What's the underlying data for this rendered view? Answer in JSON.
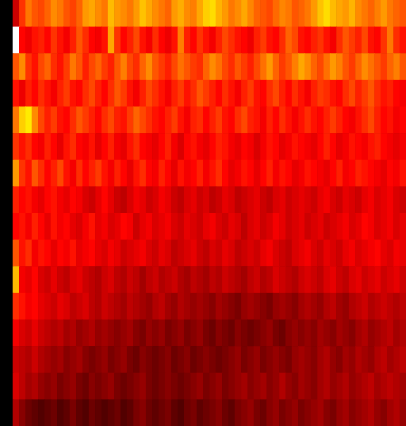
{
  "chart_data": {
    "type": "heatmap",
    "tick_labels": false,
    "zlim": [
      0,
      100
    ],
    "cells": [
      [
        0,
        0,
        30,
        45,
        55,
        50,
        48,
        52,
        58,
        55,
        50,
        47,
        52,
        60,
        62,
        58,
        55,
        65,
        60,
        58,
        55,
        60,
        66,
        62,
        58,
        55,
        52,
        60,
        63,
        58,
        56,
        62,
        68,
        70,
        64,
        60,
        55,
        58,
        62,
        57,
        52,
        50,
        48,
        53,
        57,
        55,
        50,
        52,
        55,
        60,
        66,
        70,
        65,
        62,
        60,
        64,
        58,
        55,
        52,
        56,
        60,
        55,
        52,
        50
      ],
      [
        0,
        0,
        100,
        38,
        35,
        40,
        42,
        38,
        45,
        40,
        36,
        42,
        50,
        44,
        38,
        36,
        40,
        62,
        45,
        38,
        42,
        48,
        40,
        36,
        44,
        38,
        35,
        40,
        56,
        42,
        38,
        45,
        40,
        36,
        42,
        48,
        44,
        40,
        38,
        35,
        42,
        46,
        40,
        38,
        44,
        52,
        48,
        40,
        38,
        42,
        45,
        40,
        36,
        44,
        50,
        46,
        42,
        48,
        40,
        38,
        45,
        55,
        44,
        40
      ],
      [
        0,
        0,
        50,
        58,
        45,
        40,
        48,
        52,
        44,
        40,
        46,
        55,
        50,
        42,
        48,
        52,
        46,
        42,
        50,
        56,
        48,
        44,
        52,
        58,
        50,
        46,
        42,
        48,
        54,
        50,
        46,
        44,
        52,
        58,
        54,
        48,
        44,
        50,
        46,
        42,
        48,
        54,
        60,
        52,
        46,
        50,
        56,
        62,
        58,
        52,
        48,
        54,
        60,
        56,
        50,
        46,
        52,
        58,
        54,
        50,
        46,
        52,
        56,
        50
      ],
      [
        0,
        0,
        40,
        35,
        42,
        38,
        44,
        40,
        36,
        42,
        46,
        40,
        38,
        44,
        48,
        42,
        38,
        44,
        50,
        46,
        40,
        36,
        42,
        48,
        44,
        40,
        36,
        42,
        46,
        40,
        44,
        50,
        46,
        42,
        38,
        44,
        40,
        36,
        42,
        46,
        40,
        38,
        44,
        48,
        42,
        38,
        44,
        40,
        36,
        42,
        46,
        44,
        40,
        38,
        44,
        48,
        42,
        46,
        50,
        44,
        40,
        42,
        38,
        36
      ],
      [
        0,
        0,
        55,
        68,
        72,
        58,
        48,
        42,
        46,
        40,
        38,
        44,
        50,
        46,
        42,
        38,
        44,
        48,
        42,
        40,
        46,
        52,
        48,
        44,
        40,
        38,
        42,
        46,
        40,
        36,
        42,
        44,
        38,
        42,
        46,
        40,
        38,
        44,
        48,
        42,
        40,
        36,
        42,
        38,
        44,
        40,
        36,
        40,
        44,
        40,
        38,
        42,
        46,
        42,
        38,
        36,
        40,
        44,
        48,
        42,
        38,
        40,
        36,
        38
      ],
      [
        0,
        0,
        45,
        40,
        44,
        38,
        36,
        42,
        38,
        34,
        40,
        44,
        38,
        36,
        40,
        34,
        38,
        42,
        36,
        34,
        40,
        44,
        38,
        36,
        34,
        38,
        42,
        36,
        32,
        38,
        40,
        36,
        34,
        38,
        42,
        40,
        36,
        34,
        38,
        36,
        32,
        36,
        40,
        38,
        34,
        36,
        40,
        38,
        36,
        34,
        38,
        42,
        38,
        34,
        36,
        40,
        38,
        36,
        40,
        42,
        38,
        36,
        34,
        36
      ],
      [
        0,
        0,
        60,
        45,
        40,
        50,
        44,
        38,
        42,
        48,
        40,
        36,
        44,
        38,
        42,
        46,
        40,
        36,
        42,
        38,
        34,
        40,
        44,
        38,
        36,
        42,
        38,
        34,
        40,
        36,
        38,
        42,
        36,
        40,
        44,
        38,
        34,
        36,
        40,
        38,
        34,
        38,
        42,
        36,
        40,
        38,
        34,
        36,
        40,
        38,
        36,
        34,
        38,
        42,
        36,
        38,
        42,
        40,
        38,
        36,
        34,
        38,
        36,
        40
      ],
      [
        0,
        0,
        42,
        38,
        40,
        36,
        34,
        38,
        40,
        36,
        34,
        38,
        36,
        32,
        30,
        34,
        38,
        34,
        30,
        28,
        32,
        36,
        34,
        30,
        32,
        36,
        34,
        30,
        28,
        32,
        34,
        30,
        32,
        28,
        30,
        34,
        32,
        28,
        30,
        32,
        34,
        30,
        28,
        32,
        34,
        30,
        32,
        34,
        32,
        30,
        34,
        36,
        32,
        30,
        34,
        32,
        30,
        34,
        36,
        32,
        34,
        36,
        32,
        30
      ],
      [
        0,
        0,
        38,
        40,
        36,
        42,
        38,
        34,
        40,
        36,
        38,
        34,
        32,
        36,
        40,
        34,
        36,
        32,
        34,
        38,
        36,
        30,
        34,
        36,
        32,
        34,
        36,
        32,
        30,
        34,
        32,
        30,
        34,
        36,
        32,
        30,
        34,
        32,
        28,
        32,
        34,
        30,
        32,
        36,
        34,
        30,
        32,
        34,
        30,
        32,
        34,
        30,
        32,
        34,
        36,
        32,
        34,
        38,
        36,
        32,
        34,
        36,
        32,
        34
      ],
      [
        0,
        0,
        50,
        40,
        44,
        36,
        40,
        38,
        34,
        38,
        36,
        40,
        34,
        36,
        38,
        34,
        32,
        36,
        34,
        30,
        32,
        34,
        36,
        32,
        30,
        34,
        32,
        28,
        30,
        32,
        34,
        30,
        28,
        32,
        30,
        34,
        32,
        28,
        30,
        32,
        30,
        34,
        36,
        32,
        30,
        28,
        32,
        34,
        36,
        32,
        30,
        34,
        32,
        30,
        34,
        36,
        32,
        34,
        36,
        38,
        34,
        32,
        36,
        34
      ],
      [
        0,
        0,
        65,
        36,
        34,
        38,
        32,
        30,
        34,
        30,
        28,
        32,
        34,
        30,
        28,
        26,
        30,
        32,
        28,
        26,
        30,
        28,
        24,
        28,
        30,
        26,
        28,
        30,
        26,
        24,
        28,
        26,
        24,
        28,
        26,
        30,
        28,
        26,
        24,
        28,
        30,
        26,
        28,
        32,
        30,
        28,
        26,
        30,
        32,
        30,
        28,
        32,
        34,
        30,
        28,
        32,
        34,
        30,
        32,
        34,
        30,
        32,
        34,
        30
      ],
      [
        0,
        0,
        44,
        40,
        36,
        38,
        34,
        32,
        30,
        34,
        32,
        28,
        30,
        32,
        28,
        26,
        30,
        28,
        26,
        24,
        28,
        26,
        24,
        22,
        26,
        28,
        24,
        22,
        26,
        24,
        22,
        24,
        22,
        20,
        24,
        22,
        20,
        18,
        22,
        24,
        22,
        20,
        18,
        22,
        24,
        22,
        20,
        24,
        26,
        24,
        22,
        26,
        28,
        24,
        22,
        26,
        28,
        30,
        26,
        28,
        30,
        28,
        26,
        28
      ],
      [
        0,
        0,
        36,
        32,
        30,
        34,
        30,
        28,
        26,
        28,
        24,
        26,
        22,
        24,
        26,
        22,
        24,
        22,
        20,
        22,
        24,
        20,
        18,
        22,
        20,
        22,
        18,
        20,
        22,
        18,
        20,
        22,
        18,
        16,
        20,
        18,
        16,
        20,
        18,
        16,
        18,
        20,
        22,
        18,
        16,
        20,
        22,
        20,
        22,
        20,
        24,
        22,
        20,
        24,
        22,
        20,
        24,
        26,
        22,
        24,
        26,
        28,
        24,
        26
      ],
      [
        0,
        0,
        30,
        28,
        26,
        30,
        26,
        24,
        22,
        24,
        20,
        22,
        24,
        20,
        18,
        20,
        22,
        18,
        20,
        22,
        18,
        16,
        20,
        18,
        16,
        18,
        20,
        16,
        18,
        20,
        16,
        18,
        20,
        18,
        16,
        18,
        20,
        22,
        18,
        20,
        22,
        18,
        20,
        22,
        20,
        18,
        22,
        24,
        22,
        20,
        24,
        26,
        22,
        20,
        24,
        22,
        26,
        24,
        22,
        26,
        28,
        24,
        26,
        28
      ],
      [
        0,
        0,
        32,
        28,
        24,
        26,
        22,
        20,
        22,
        18,
        20,
        22,
        18,
        16,
        20,
        18,
        20,
        22,
        18,
        16,
        18,
        20,
        22,
        18,
        16,
        18,
        20,
        18,
        16,
        18,
        20,
        22,
        18,
        20,
        22,
        18,
        20,
        22,
        24,
        20,
        22,
        24,
        20,
        22,
        26,
        22,
        20,
        24,
        22,
        20,
        24,
        26,
        22,
        24,
        26,
        22,
        24,
        26,
        28,
        24,
        26,
        28,
        26,
        24
      ],
      [
        0,
        0,
        26,
        20,
        16,
        14,
        12,
        14,
        16,
        12,
        14,
        18,
        14,
        12,
        16,
        14,
        12,
        14,
        16,
        12,
        14,
        18,
        20,
        16,
        14,
        16,
        18,
        14,
        12,
        16,
        18,
        14,
        16,
        18,
        20,
        16,
        14,
        18,
        20,
        22,
        18,
        16,
        20,
        22,
        18,
        20,
        22,
        18,
        20,
        22,
        24,
        20,
        18,
        22,
        24,
        20,
        22,
        24,
        26,
        22,
        20,
        24,
        26,
        22
      ]
    ]
  }
}
